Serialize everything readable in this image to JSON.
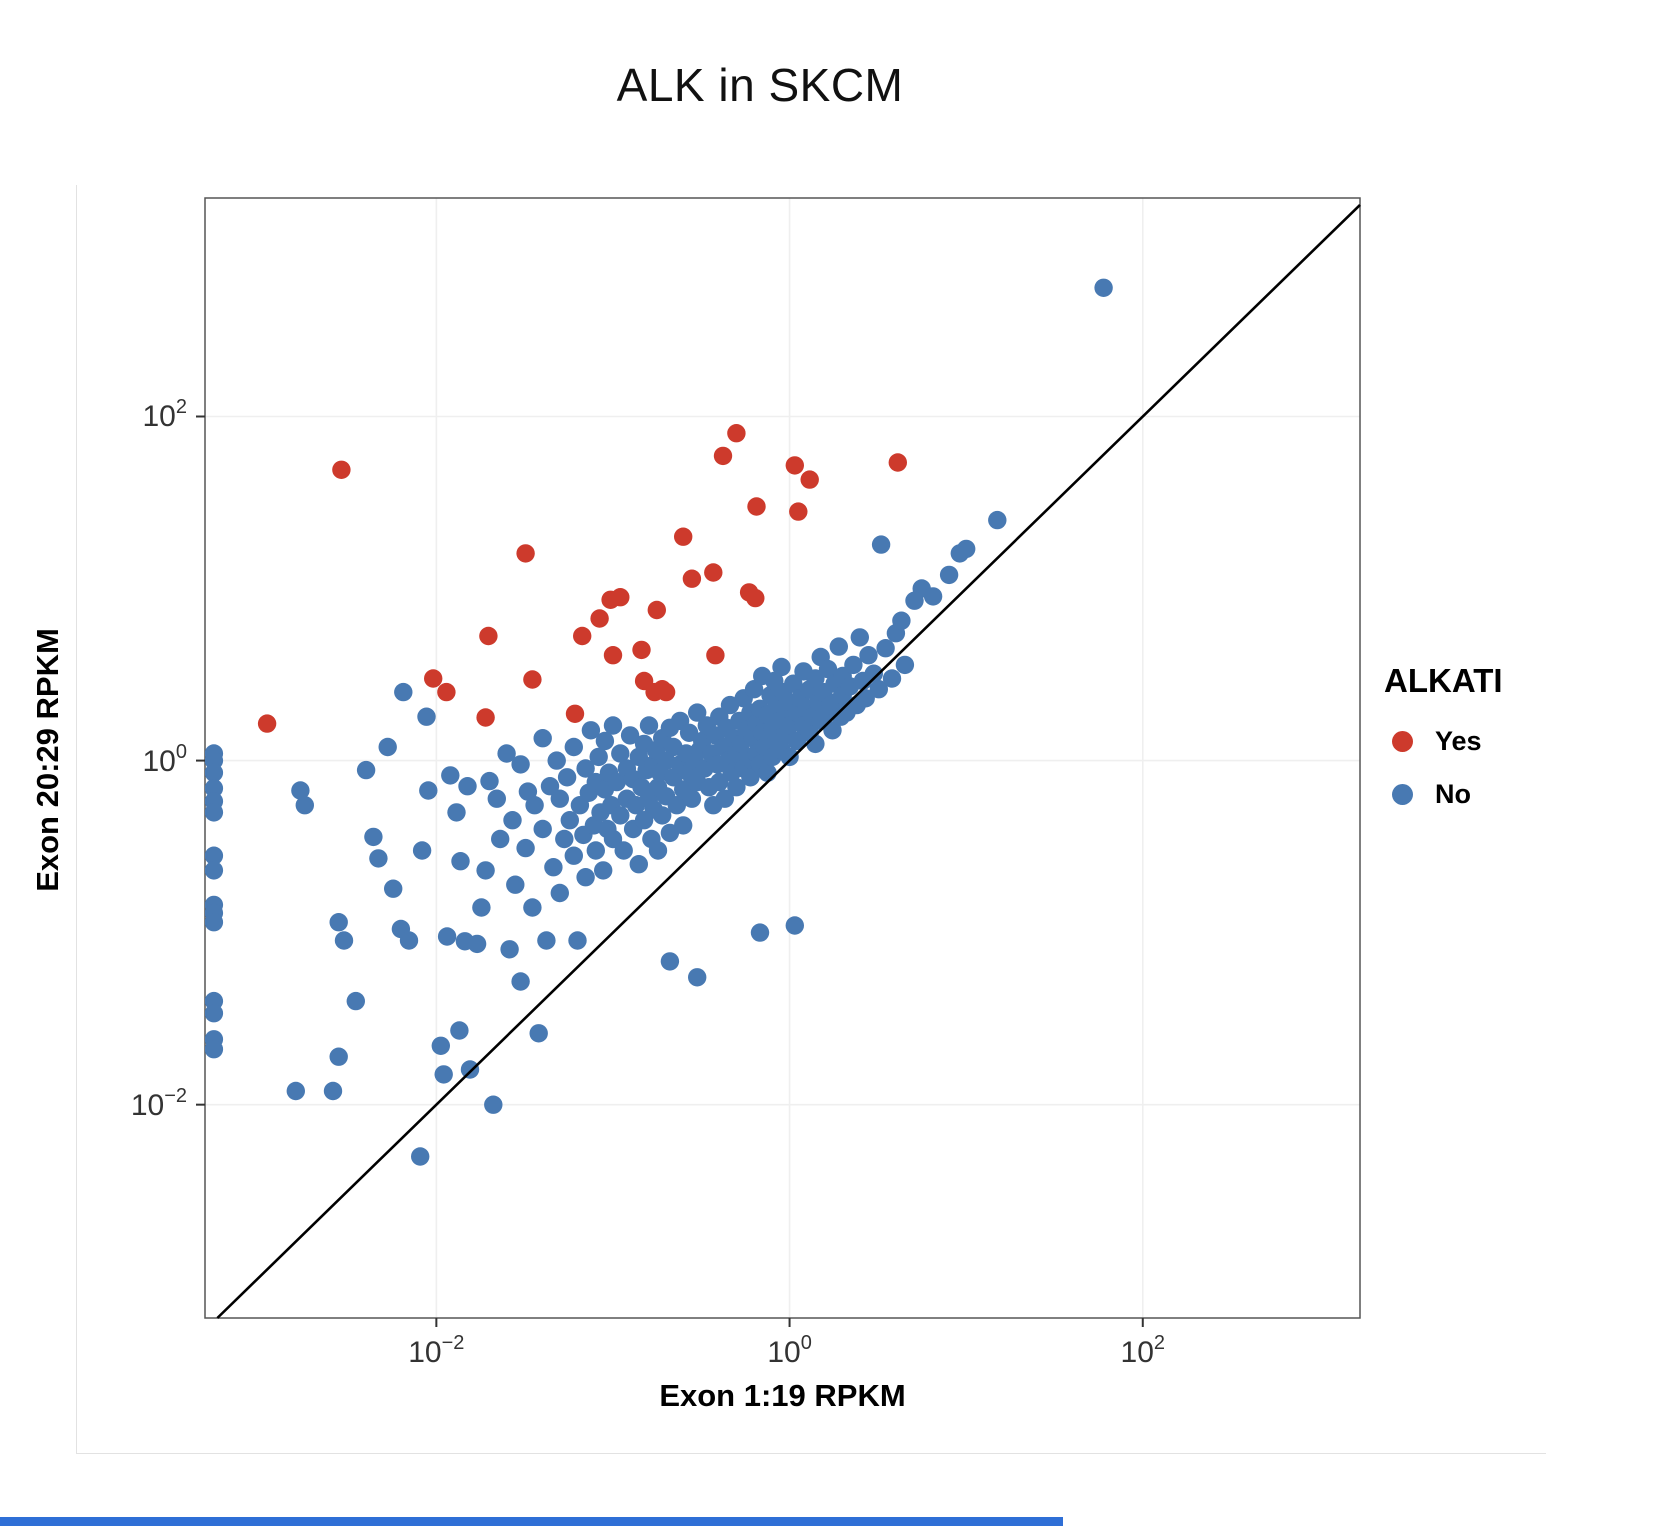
{
  "page": {
    "bottom_bar_color": "#2f6fd6"
  },
  "chart_data": {
    "type": "scatter",
    "title": "ALK in SKCM",
    "xlabel": "Exon 1:19 RPKM",
    "ylabel": "Exon 20:29 RPKM",
    "xscale": "log10",
    "yscale": "log10",
    "x_tick_exponents": [
      -2,
      0,
      2
    ],
    "y_tick_exponents": [
      2,
      0,
      -2
    ],
    "x_range_log10": [
      -3.31,
      3.23
    ],
    "y_range_log10": [
      -3.24,
      3.27
    ],
    "grid": "major gridlines, very light gray, white background",
    "diagonal_line": "y = x, black",
    "legend_title": "ALKATI",
    "legend_position": "right",
    "series": [
      {
        "name": "No",
        "color": "#4879b2",
        "points": [
          [
            0.00055,
            1.1
          ],
          [
            0.00055,
            1.0
          ],
          [
            0.00055,
            0.85
          ],
          [
            0.00055,
            0.69
          ],
          [
            0.00055,
            0.58
          ],
          [
            0.00055,
            0.5
          ],
          [
            0.00055,
            0.28
          ],
          [
            0.00055,
            0.23
          ],
          [
            0.00055,
            0.145
          ],
          [
            0.00055,
            0.13
          ],
          [
            0.00055,
            0.115
          ],
          [
            0.00055,
            0.04
          ],
          [
            0.00055,
            0.034
          ],
          [
            0.00055,
            0.024
          ],
          [
            0.00055,
            0.021
          ],
          [
            0.0017,
            0.67
          ],
          [
            0.0018,
            0.55
          ],
          [
            0.0016,
            0.012
          ],
          [
            0.0026,
            0.012
          ],
          [
            0.0028,
            0.019
          ],
          [
            0.0028,
            0.115
          ],
          [
            0.003,
            0.09
          ],
          [
            0.0035,
            0.04
          ],
          [
            0.004,
            0.88
          ],
          [
            0.0044,
            0.36
          ],
          [
            0.0047,
            0.27
          ],
          [
            0.0053,
            1.2
          ],
          [
            0.0057,
            0.18
          ],
          [
            0.0063,
            0.105
          ],
          [
            0.007,
            0.09
          ],
          [
            0.0065,
            2.5
          ],
          [
            0.0081,
            0.005
          ],
          [
            0.0083,
            0.3
          ],
          [
            0.0088,
            1.8
          ],
          [
            0.009,
            0.67
          ],
          [
            0.0106,
            0.022
          ],
          [
            0.011,
            0.015
          ],
          [
            0.0115,
            0.095
          ],
          [
            0.012,
            0.82
          ],
          [
            0.013,
            0.5
          ],
          [
            0.0135,
            0.027
          ],
          [
            0.0137,
            0.26
          ],
          [
            0.0145,
            0.089
          ],
          [
            0.015,
            0.71
          ],
          [
            0.0155,
            0.016
          ],
          [
            0.017,
            0.086
          ],
          [
            0.018,
            0.14
          ],
          [
            0.019,
            0.23
          ],
          [
            0.02,
            0.76
          ],
          [
            0.021,
            0.01
          ],
          [
            0.022,
            0.6
          ],
          [
            0.023,
            0.35
          ],
          [
            0.025,
            1.1
          ],
          [
            0.026,
            0.08
          ],
          [
            0.027,
            0.45
          ],
          [
            0.028,
            0.19
          ],
          [
            0.03,
            0.95
          ],
          [
            0.03,
            0.052
          ],
          [
            0.032,
            0.31
          ],
          [
            0.033,
            0.66
          ],
          [
            0.035,
            0.14
          ],
          [
            0.036,
            0.55
          ],
          [
            0.038,
            0.026
          ],
          [
            0.04,
            0.4
          ],
          [
            0.04,
            1.35
          ],
          [
            0.042,
            0.09
          ],
          [
            0.044,
            0.71
          ],
          [
            0.046,
            0.24
          ],
          [
            0.048,
            1.0
          ],
          [
            0.05,
            0.6
          ],
          [
            0.05,
            0.17
          ],
          [
            0.053,
            0.35
          ],
          [
            0.055,
            0.8
          ],
          [
            0.057,
            0.45
          ],
          [
            0.06,
            1.2
          ],
          [
            0.06,
            0.28
          ],
          [
            0.063,
            0.09
          ],
          [
            0.065,
            0.55
          ],
          [
            0.068,
            0.37
          ],
          [
            0.07,
            0.9
          ],
          [
            0.07,
            0.21
          ],
          [
            0.073,
            0.65
          ],
          [
            0.075,
            1.5
          ],
          [
            0.078,
            0.42
          ],
          [
            0.08,
            0.75
          ],
          [
            0.08,
            0.3
          ],
          [
            0.083,
            1.05
          ],
          [
            0.085,
            0.5
          ],
          [
            0.088,
            0.23
          ],
          [
            0.09,
            1.3
          ],
          [
            0.09,
            0.68
          ],
          [
            0.093,
            0.4
          ],
          [
            0.095,
            0.85
          ],
          [
            0.098,
            0.55
          ],
          [
            0.1,
            1.6
          ],
          [
            0.1,
            0.35
          ],
          [
            0.105,
            0.75
          ],
          [
            0.11,
            0.48
          ],
          [
            0.11,
            1.1
          ],
          [
            0.115,
            0.3
          ],
          [
            0.12,
            0.9
          ],
          [
            0.12,
            0.6
          ],
          [
            0.125,
            1.4
          ],
          [
            0.13,
            0.4
          ],
          [
            0.13,
            0.78
          ],
          [
            0.135,
            0.55
          ],
          [
            0.14,
            1.05
          ],
          [
            0.14,
            0.25
          ],
          [
            0.145,
            0.7
          ],
          [
            0.15,
            1.25
          ],
          [
            0.15,
            0.45
          ],
          [
            0.155,
            0.88
          ],
          [
            0.16,
            0.6
          ],
          [
            0.16,
            1.6
          ],
          [
            0.165,
            0.35
          ],
          [
            0.17,
            0.95
          ],
          [
            0.17,
            0.52
          ],
          [
            0.175,
            1.15
          ],
          [
            0.18,
            0.7
          ],
          [
            0.18,
            0.3
          ],
          [
            0.185,
            0.85
          ],
          [
            0.19,
            1.35
          ],
          [
            0.19,
            0.48
          ],
          [
            0.2,
            1.0
          ],
          [
            0.2,
            0.62
          ],
          [
            0.21,
            1.55
          ],
          [
            0.21,
            0.38
          ],
          [
            0.21,
            0.068
          ],
          [
            0.22,
            0.8
          ],
          [
            0.22,
            1.2
          ],
          [
            0.23,
            0.55
          ],
          [
            0.24,
            0.95
          ],
          [
            0.24,
            1.7
          ],
          [
            0.25,
            0.68
          ],
          [
            0.25,
            0.42
          ],
          [
            0.26,
            1.1
          ],
          [
            0.27,
            0.85
          ],
          [
            0.27,
            1.45
          ],
          [
            0.28,
            0.6
          ],
          [
            0.29,
            1.0
          ],
          [
            0.3,
            0.75
          ],
          [
            0.3,
            1.9
          ],
          [
            0.3,
            0.055
          ],
          [
            0.31,
            1.15
          ],
          [
            0.32,
            1.3
          ],
          [
            0.33,
            0.9
          ],
          [
            0.34,
            1.6
          ],
          [
            0.35,
            0.7
          ],
          [
            0.36,
            1.1
          ],
          [
            0.37,
            0.55
          ],
          [
            0.38,
            1.4
          ],
          [
            0.39,
            0.95
          ],
          [
            0.4,
            1.8
          ],
          [
            0.4,
            0.75
          ],
          [
            0.42,
            1.2
          ],
          [
            0.43,
            0.6
          ],
          [
            0.44,
            1.55
          ],
          [
            0.45,
            1.0
          ],
          [
            0.46,
            2.1
          ],
          [
            0.47,
            0.85
          ],
          [
            0.48,
            1.35
          ],
          [
            0.5,
            1.1
          ],
          [
            0.5,
            0.7
          ],
          [
            0.52,
            1.7
          ],
          [
            0.53,
            1.25
          ],
          [
            0.55,
            0.9
          ],
          [
            0.55,
            2.3
          ],
          [
            0.57,
            1.5
          ],
          [
            0.58,
            1.05
          ],
          [
            0.6,
            1.9
          ],
          [
            0.6,
            0.8
          ],
          [
            0.62,
            1.35
          ],
          [
            0.63,
            2.6
          ],
          [
            0.65,
            1.1
          ],
          [
            0.65,
            1.65
          ],
          [
            0.68,
            0.95
          ],
          [
            0.68,
            2.0
          ],
          [
            0.68,
            0.1
          ],
          [
            0.7,
            1.45
          ],
          [
            0.7,
            3.1
          ],
          [
            0.72,
            1.2
          ],
          [
            0.75,
            1.85
          ],
          [
            0.75,
            0.85
          ],
          [
            0.78,
            2.4
          ],
          [
            0.8,
            1.55
          ],
          [
            0.8,
            1.05
          ],
          [
            0.82,
            2.9
          ],
          [
            0.85,
            1.3
          ],
          [
            0.85,
            2.1
          ],
          [
            0.88,
            1.7
          ],
          [
            0.9,
            1.15
          ],
          [
            0.9,
            3.5
          ],
          [
            0.92,
            2.5
          ],
          [
            0.95,
            1.9
          ],
          [
            0.95,
            1.4
          ],
          [
            0.98,
            2.2
          ],
          [
            1.0,
            1.6
          ],
          [
            1.0,
            1.05
          ],
          [
            1.05,
            2.8
          ],
          [
            1.07,
            0.11
          ],
          [
            1.1,
            1.9
          ],
          [
            1.1,
            1.3
          ],
          [
            1.15,
            2.3
          ],
          [
            1.2,
            1.6
          ],
          [
            1.2,
            3.3
          ],
          [
            1.25,
            2.0
          ],
          [
            1.3,
            1.45
          ],
          [
            1.3,
            2.6
          ],
          [
            1.35,
            1.8
          ],
          [
            1.4,
            3.0
          ],
          [
            1.4,
            1.25
          ],
          [
            1.45,
            2.2
          ],
          [
            1.5,
            1.7
          ],
          [
            1.5,
            4.0
          ],
          [
            1.55,
            2.5
          ],
          [
            1.6,
            1.9
          ],
          [
            1.65,
            3.4
          ],
          [
            1.7,
            2.1
          ],
          [
            1.75,
            1.5
          ],
          [
            1.8,
            2.8
          ],
          [
            1.85,
            2.2
          ],
          [
            1.9,
            4.6
          ],
          [
            1.95,
            1.8
          ],
          [
            2.0,
            3.1
          ],
          [
            2.0,
            2.4
          ],
          [
            2.1,
            1.9
          ],
          [
            2.2,
            2.7
          ],
          [
            2.3,
            3.6
          ],
          [
            2.4,
            2.1
          ],
          [
            2.5,
            5.2
          ],
          [
            2.6,
            2.9
          ],
          [
            2.7,
            2.3
          ],
          [
            2.8,
            4.1
          ],
          [
            3.0,
            3.2
          ],
          [
            3.2,
            2.6
          ],
          [
            3.5,
            4.5
          ],
          [
            3.8,
            3.0
          ],
          [
            4.0,
            5.5
          ],
          [
            4.5,
            3.6
          ],
          [
            3.3,
            18
          ],
          [
            5.6,
            10
          ],
          [
            5.1,
            8.5
          ],
          [
            9.2,
            16
          ],
          [
            15,
            25
          ],
          [
            10,
            17
          ],
          [
            4.3,
            6.5
          ],
          [
            6.5,
            9.0
          ],
          [
            8.0,
            12
          ],
          [
            60,
            560
          ]
        ]
      },
      {
        "name": "Yes",
        "color": "#cd3a2c",
        "points": [
          [
            0.0029,
            49
          ],
          [
            0.0011,
            1.64
          ],
          [
            0.0096,
            3.0
          ],
          [
            0.0114,
            2.5
          ],
          [
            0.0197,
            5.3
          ],
          [
            0.019,
            1.78
          ],
          [
            0.032,
            16
          ],
          [
            0.035,
            2.96
          ],
          [
            0.061,
            1.87
          ],
          [
            0.067,
            5.3
          ],
          [
            0.084,
            6.7
          ],
          [
            0.097,
            8.6
          ],
          [
            0.1,
            4.1
          ],
          [
            0.11,
            8.9
          ],
          [
            0.145,
            4.4
          ],
          [
            0.15,
            2.9
          ],
          [
            0.177,
            7.5
          ],
          [
            0.172,
            2.5
          ],
          [
            0.19,
            2.6
          ],
          [
            0.2,
            2.5
          ],
          [
            0.25,
            20
          ],
          [
            0.28,
            11.4
          ],
          [
            0.38,
            4.1
          ],
          [
            0.37,
            12.4
          ],
          [
            0.42,
            59
          ],
          [
            0.5,
            80
          ],
          [
            0.59,
            9.5
          ],
          [
            0.64,
            8.8
          ],
          [
            0.65,
            30
          ],
          [
            1.07,
            52
          ],
          [
            1.12,
            28
          ],
          [
            1.3,
            43
          ],
          [
            4.1,
            54
          ]
        ]
      }
    ]
  }
}
